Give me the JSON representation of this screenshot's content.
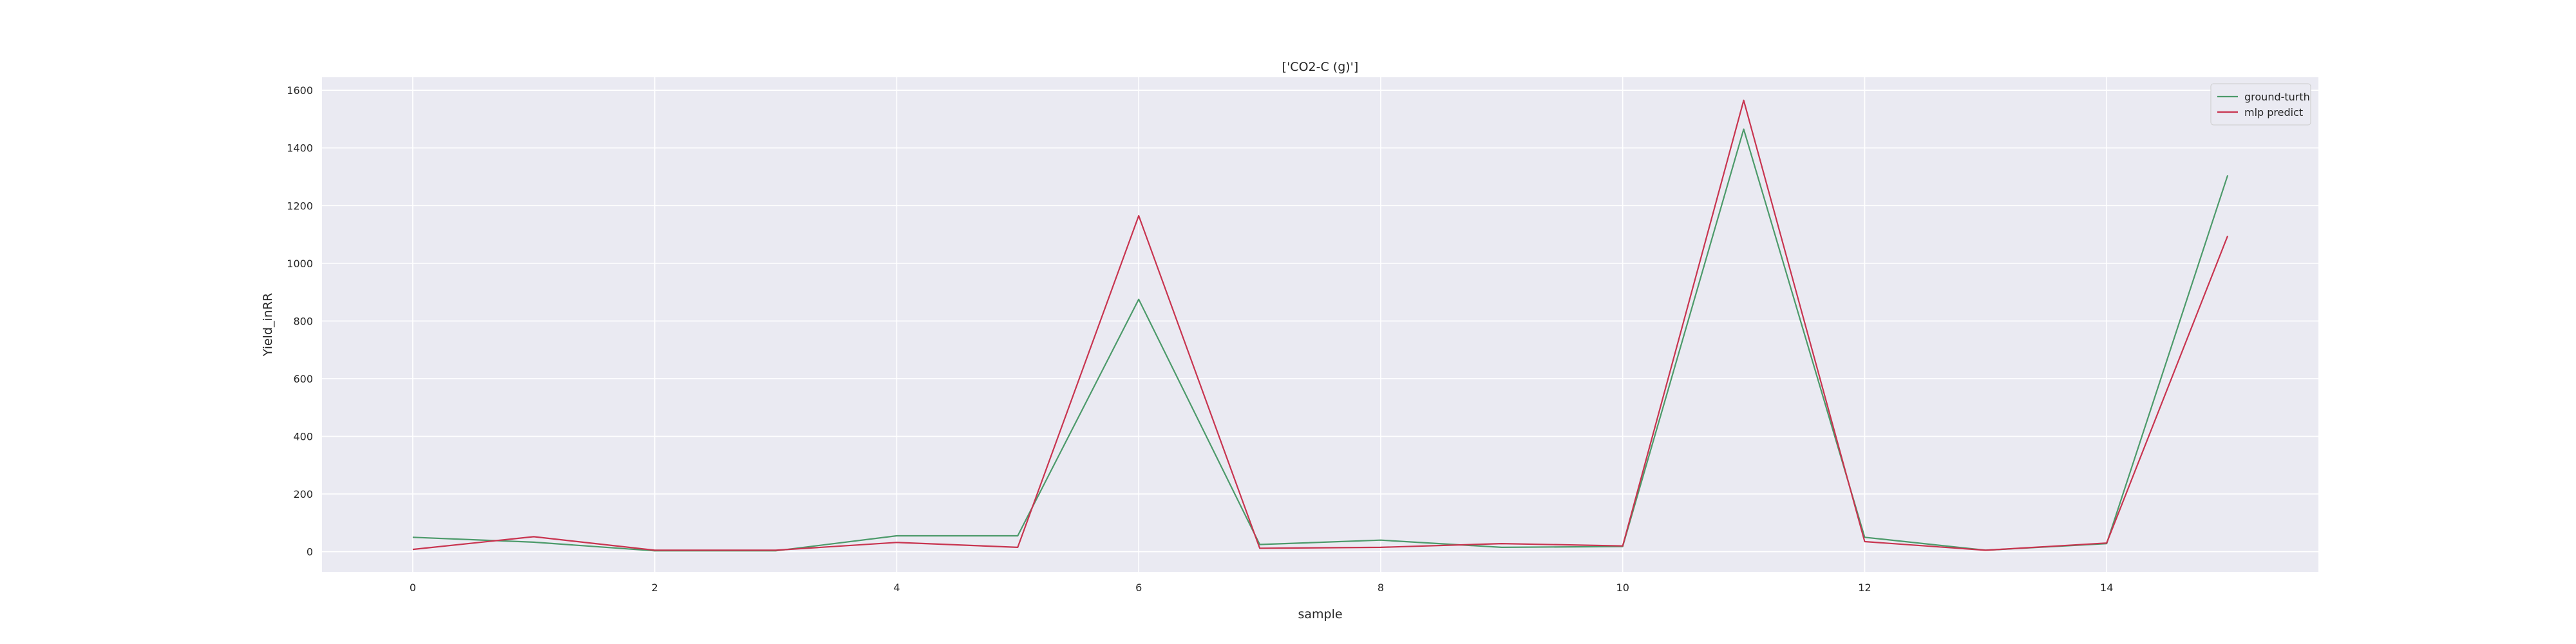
{
  "chart_data": {
    "type": "line",
    "title": "['CO2-C (g)']",
    "xlabel": "sample",
    "ylabel": "Yield_inRR",
    "x": [
      0,
      1,
      2,
      3,
      4,
      5,
      6,
      7,
      8,
      9,
      10,
      11,
      12,
      13,
      14,
      15
    ],
    "xlim": [
      -0.75,
      15.75
    ],
    "ylim": [
      -70,
      1645
    ],
    "xticks": [
      0,
      2,
      4,
      6,
      8,
      10,
      12,
      14
    ],
    "yticks": [
      0,
      200,
      400,
      600,
      800,
      1000,
      1200,
      1400,
      1600
    ],
    "grid": true,
    "legend_position": "top-right",
    "series": [
      {
        "name": "ground-turth",
        "color": "#4c9a6a",
        "values": [
          50,
          33,
          3,
          3,
          55,
          55,
          875,
          25,
          40,
          15,
          18,
          1465,
          50,
          5,
          28,
          1305
        ]
      },
      {
        "name": "mlp predict",
        "color": "#c8344f",
        "values": [
          8,
          52,
          5,
          5,
          32,
          15,
          1165,
          12,
          15,
          28,
          20,
          1565,
          35,
          5,
          30,
          1095
        ]
      }
    ]
  },
  "colors": {
    "plot_background": "#eaeaf2",
    "grid": "#ffffff",
    "text": "#262626"
  }
}
